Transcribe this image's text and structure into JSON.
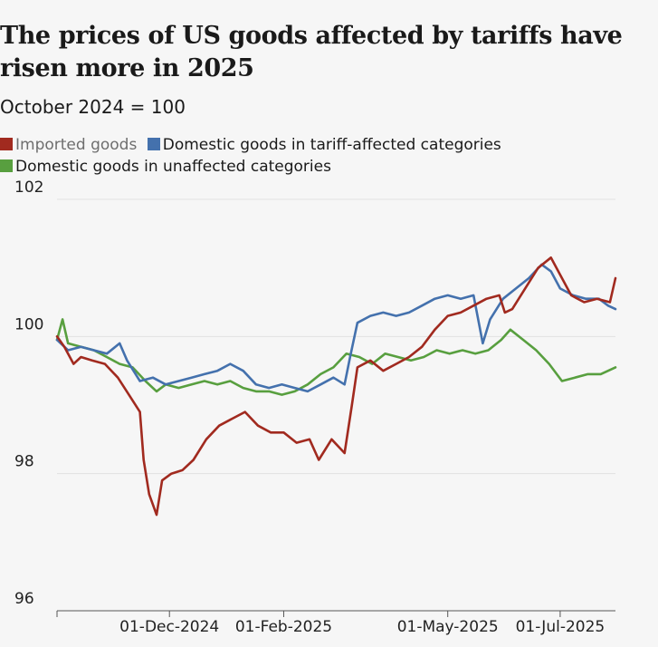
{
  "header": {
    "title": "The prices of US goods affected by tariffs have risen more in 2025",
    "subtitle": "October 2024 = 100"
  },
  "chart_data": {
    "type": "line",
    "title": "The prices of US goods affected by tariffs have risen more in 2025",
    "subtitle": "October 2024 = 100",
    "xlabel": "",
    "ylabel": "",
    "ylim": [
      96,
      102
    ],
    "yticks": [
      96,
      98,
      100,
      102
    ],
    "xlim": [
      "2024-10-01",
      "2025-07-31"
    ],
    "xticks": [
      {
        "date": "2024-12-01",
        "label": "01-Dec-2024"
      },
      {
        "date": "2025-02-01",
        "label": "01-Feb-2025"
      },
      {
        "date": "2025-05-01",
        "label": "01-May-2025"
      },
      {
        "date": "2025-07-01",
        "label": "01-Jul-2025"
      }
    ],
    "grid": "horizontal",
    "legend_position": "top",
    "series": [
      {
        "name": "Imported goods",
        "color": "#a12a1f",
        "legend_muted": true,
        "points": [
          [
            "2024-10-01",
            100.0
          ],
          [
            "2024-10-05",
            99.85
          ],
          [
            "2024-10-10",
            99.6
          ],
          [
            "2024-10-14",
            99.7
          ],
          [
            "2024-10-20",
            99.65
          ],
          [
            "2024-10-27",
            99.6
          ],
          [
            "2024-11-03",
            99.4
          ],
          [
            "2024-11-09",
            99.15
          ],
          [
            "2024-11-15",
            98.9
          ],
          [
            "2024-11-17",
            98.2
          ],
          [
            "2024-11-20",
            97.7
          ],
          [
            "2024-11-24",
            97.4
          ],
          [
            "2024-11-27",
            97.9
          ],
          [
            "2024-12-02",
            98.0
          ],
          [
            "2024-12-08",
            98.05
          ],
          [
            "2024-12-14",
            98.2
          ],
          [
            "2024-12-21",
            98.5
          ],
          [
            "2024-12-28",
            98.7
          ],
          [
            "2025-01-04",
            98.8
          ],
          [
            "2025-01-11",
            98.9
          ],
          [
            "2025-01-18",
            98.7
          ],
          [
            "2025-01-25",
            98.6
          ],
          [
            "2025-02-01",
            98.6
          ],
          [
            "2025-02-08",
            98.45
          ],
          [
            "2025-02-15",
            98.5
          ],
          [
            "2025-02-20",
            98.2
          ],
          [
            "2025-02-27",
            98.5
          ],
          [
            "2025-03-06",
            98.3
          ],
          [
            "2025-03-10",
            99.0
          ],
          [
            "2025-03-13",
            99.55
          ],
          [
            "2025-03-20",
            99.65
          ],
          [
            "2025-03-27",
            99.5
          ],
          [
            "2025-04-03",
            99.6
          ],
          [
            "2025-04-10",
            99.7
          ],
          [
            "2025-04-17",
            99.85
          ],
          [
            "2025-04-24",
            100.1
          ],
          [
            "2025-05-01",
            100.3
          ],
          [
            "2025-05-08",
            100.35
          ],
          [
            "2025-05-15",
            100.45
          ],
          [
            "2025-05-22",
            100.55
          ],
          [
            "2025-05-29",
            100.6
          ],
          [
            "2025-06-01",
            100.35
          ],
          [
            "2025-06-05",
            100.4
          ],
          [
            "2025-06-12",
            100.7
          ],
          [
            "2025-06-19",
            101.0
          ],
          [
            "2025-06-26",
            101.15
          ],
          [
            "2025-07-01",
            100.9
          ],
          [
            "2025-07-07",
            100.6
          ],
          [
            "2025-07-14",
            100.5
          ],
          [
            "2025-07-21",
            100.55
          ],
          [
            "2025-07-28",
            100.5
          ],
          [
            "2025-07-31",
            100.85
          ]
        ]
      },
      {
        "name": "Domestic goods in tariff-affected categories",
        "color": "#4471ad",
        "legend_muted": false,
        "points": [
          [
            "2024-10-01",
            99.95
          ],
          [
            "2024-10-07",
            99.8
          ],
          [
            "2024-10-14",
            99.85
          ],
          [
            "2024-10-21",
            99.8
          ],
          [
            "2024-10-28",
            99.75
          ],
          [
            "2024-11-04",
            99.9
          ],
          [
            "2024-11-08",
            99.65
          ],
          [
            "2024-11-15",
            99.35
          ],
          [
            "2024-11-22",
            99.4
          ],
          [
            "2024-11-29",
            99.3
          ],
          [
            "2024-12-06",
            99.35
          ],
          [
            "2024-12-13",
            99.4
          ],
          [
            "2024-12-20",
            99.45
          ],
          [
            "2024-12-27",
            99.5
          ],
          [
            "2025-01-03",
            99.6
          ],
          [
            "2025-01-10",
            99.5
          ],
          [
            "2025-01-17",
            99.3
          ],
          [
            "2025-01-24",
            99.25
          ],
          [
            "2025-01-31",
            99.3
          ],
          [
            "2025-02-07",
            99.25
          ],
          [
            "2025-02-14",
            99.2
          ],
          [
            "2025-02-21",
            99.3
          ],
          [
            "2025-02-28",
            99.4
          ],
          [
            "2025-03-06",
            99.3
          ],
          [
            "2025-03-09",
            99.7
          ],
          [
            "2025-03-13",
            100.2
          ],
          [
            "2025-03-20",
            100.3
          ],
          [
            "2025-03-27",
            100.35
          ],
          [
            "2025-04-03",
            100.3
          ],
          [
            "2025-04-10",
            100.35
          ],
          [
            "2025-04-17",
            100.45
          ],
          [
            "2025-04-24",
            100.55
          ],
          [
            "2025-05-01",
            100.6
          ],
          [
            "2025-05-08",
            100.55
          ],
          [
            "2025-05-15",
            100.6
          ],
          [
            "2025-05-20",
            99.9
          ],
          [
            "2025-05-24",
            100.25
          ],
          [
            "2025-05-31",
            100.55
          ],
          [
            "2025-06-07",
            100.7
          ],
          [
            "2025-06-14",
            100.85
          ],
          [
            "2025-06-21",
            101.05
          ],
          [
            "2025-06-26",
            100.95
          ],
          [
            "2025-07-01",
            100.7
          ],
          [
            "2025-07-08",
            100.6
          ],
          [
            "2025-07-15",
            100.55
          ],
          [
            "2025-07-22",
            100.55
          ],
          [
            "2025-07-27",
            100.45
          ],
          [
            "2025-07-31",
            100.4
          ]
        ]
      },
      {
        "name": "Domestic goods in unaffected categories",
        "color": "#589f3f",
        "legend_muted": false,
        "points": [
          [
            "2024-10-01",
            99.95
          ],
          [
            "2024-10-04",
            100.25
          ],
          [
            "2024-10-07",
            99.9
          ],
          [
            "2024-10-14",
            99.85
          ],
          [
            "2024-10-21",
            99.8
          ],
          [
            "2024-10-28",
            99.7
          ],
          [
            "2024-11-04",
            99.6
          ],
          [
            "2024-11-11",
            99.55
          ],
          [
            "2024-11-18",
            99.35
          ],
          [
            "2024-11-24",
            99.2
          ],
          [
            "2024-11-29",
            99.3
          ],
          [
            "2024-12-06",
            99.25
          ],
          [
            "2024-12-13",
            99.3
          ],
          [
            "2024-12-20",
            99.35
          ],
          [
            "2024-12-27",
            99.3
          ],
          [
            "2025-01-03",
            99.35
          ],
          [
            "2025-01-10",
            99.25
          ],
          [
            "2025-01-17",
            99.2
          ],
          [
            "2025-01-24",
            99.2
          ],
          [
            "2025-01-31",
            99.15
          ],
          [
            "2025-02-07",
            99.2
          ],
          [
            "2025-02-14",
            99.3
          ],
          [
            "2025-02-21",
            99.45
          ],
          [
            "2025-02-28",
            99.55
          ],
          [
            "2025-03-07",
            99.75
          ],
          [
            "2025-03-14",
            99.7
          ],
          [
            "2025-03-21",
            99.6
          ],
          [
            "2025-03-28",
            99.75
          ],
          [
            "2025-04-04",
            99.7
          ],
          [
            "2025-04-11",
            99.65
          ],
          [
            "2025-04-18",
            99.7
          ],
          [
            "2025-04-25",
            99.8
          ],
          [
            "2025-05-02",
            99.75
          ],
          [
            "2025-05-09",
            99.8
          ],
          [
            "2025-05-16",
            99.75
          ],
          [
            "2025-05-23",
            99.8
          ],
          [
            "2025-05-30",
            99.95
          ],
          [
            "2025-06-04",
            100.1
          ],
          [
            "2025-06-11",
            99.95
          ],
          [
            "2025-06-18",
            99.8
          ],
          [
            "2025-06-25",
            99.6
          ],
          [
            "2025-07-02",
            99.35
          ],
          [
            "2025-07-09",
            99.4
          ],
          [
            "2025-07-16",
            99.45
          ],
          [
            "2025-07-23",
            99.45
          ],
          [
            "2025-07-31",
            99.55
          ]
        ]
      }
    ]
  }
}
